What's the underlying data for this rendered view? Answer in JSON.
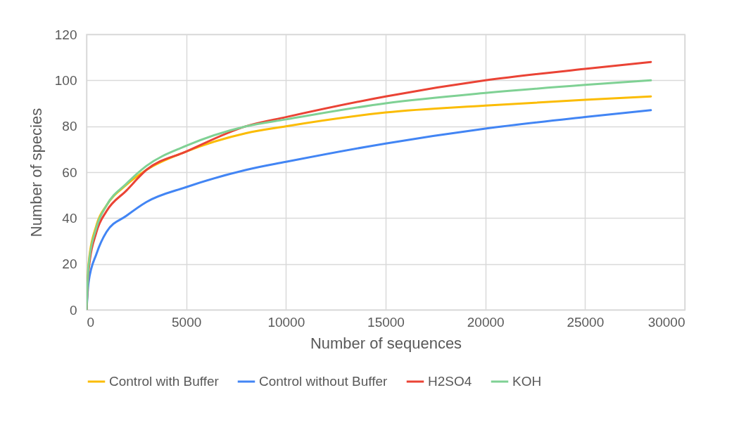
{
  "chart_data": {
    "type": "line",
    "xlabel": "Number of sequences",
    "ylabel": "Number of species",
    "x": [
      0,
      100,
      500,
      1000,
      2000,
      3000,
      5000,
      8000,
      10000,
      15000,
      20000,
      25000,
      28300
    ],
    "series": [
      {
        "name": "Control with Buffer",
        "color": "#fbbc04",
        "values": [
          0,
          20,
          37,
          45.5,
          54.5,
          61,
          69,
          77,
          80,
          86,
          89,
          91.5,
          93
        ]
      },
      {
        "name": "Control without Buffer",
        "color": "#4285f4",
        "values": [
          0,
          12,
          24.5,
          34,
          41,
          47,
          53.5,
          61,
          64.5,
          72.5,
          79,
          84,
          87
        ]
      },
      {
        "name": "H2SO4",
        "color": "#ea4335",
        "values": [
          0,
          17,
          34,
          43,
          52,
          61,
          69,
          80,
          84,
          93,
          100,
          105,
          108
        ]
      },
      {
        "name": "KOH",
        "color": "#7fd194",
        "values": [
          0,
          19,
          36,
          45.5,
          55,
          62.7,
          71.5,
          80,
          83,
          90,
          94.5,
          98,
          100
        ]
      }
    ],
    "xlim": [
      0,
      30000
    ],
    "xticks": [
      0,
      5000,
      10000,
      15000,
      20000,
      25000,
      30000
    ],
    "ylim": [
      0,
      120
    ],
    "yticks": [
      0,
      20,
      40,
      60,
      80,
      100,
      120
    ],
    "grid": true,
    "legend": "bottom",
    "marker": "none",
    "line_style": "solid"
  }
}
